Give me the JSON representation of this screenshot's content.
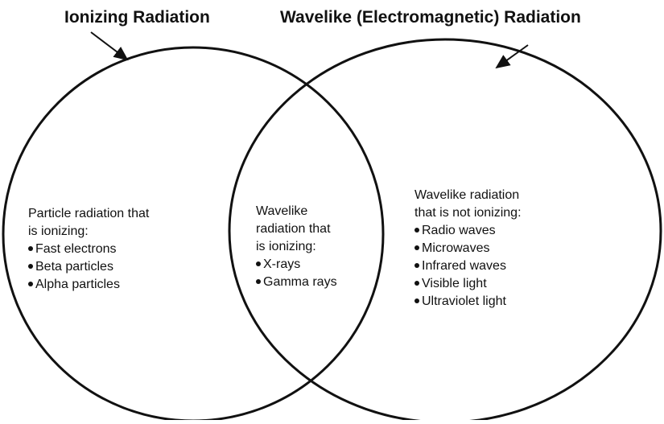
{
  "titles": [
    "Ionizing Radiation",
    "Wavelike (Electromagnetic) Radiation"
  ],
  "regions": [
    {
      "heading": [
        "Particle radiation that",
        "is ionizing:"
      ],
      "items": [
        "Fast electrons",
        "Beta particles",
        "Alpha particles"
      ]
    },
    {
      "heading": [
        "Wavelike",
        "radiation that",
        "is ionizing:"
      ],
      "items": [
        "X-rays",
        "Gamma rays"
      ]
    },
    {
      "heading": [
        "Wavelike radiation",
        "that is not ionizing:"
      ],
      "items": [
        "Radio waves",
        "Microwaves",
        "Infrared waves",
        "Visible light",
        "Ultraviolet light"
      ]
    }
  ]
}
